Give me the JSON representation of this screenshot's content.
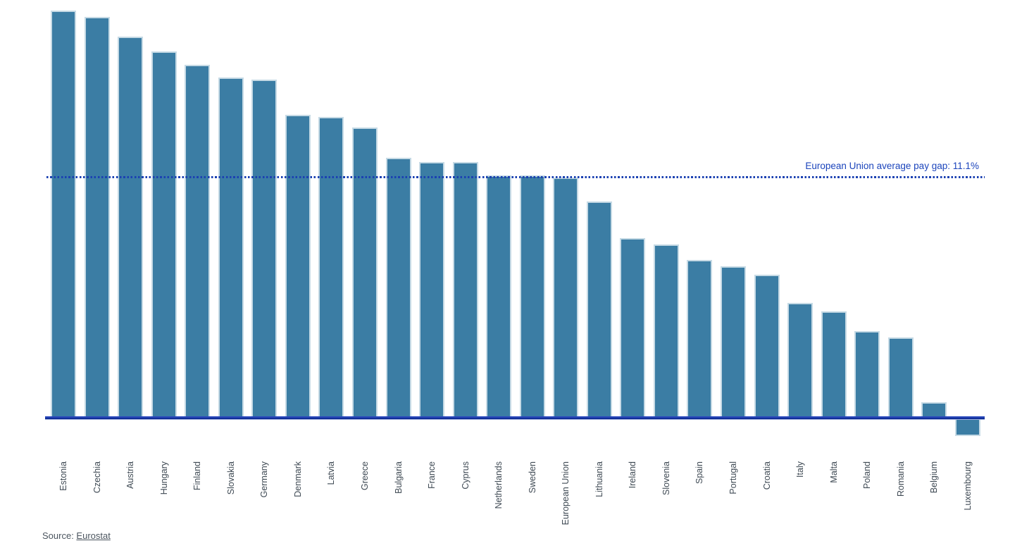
{
  "chart_data": {
    "type": "bar",
    "title": "",
    "xlabel": "",
    "ylabel": "",
    "unit": "%",
    "ylim": [
      -1.5,
      19.5
    ],
    "grid": false,
    "legend": "none",
    "bar_color": "#3b7da4",
    "bar_border_color": "#c6dae5",
    "categories": [
      "Estonia",
      "Czechia",
      "Austria",
      "Hungary",
      "Finland",
      "Slovakia",
      "Germany",
      "Denmark",
      "Latvia",
      "Greece",
      "Bulgaria",
      "France",
      "Cyprus",
      "Netherlands",
      "Sweden",
      "European Union",
      "Lithuania",
      "Ireland",
      "Slovenia",
      "Spain",
      "Portugal",
      "Croatia",
      "Italy",
      "Malta",
      "Poland",
      "Romania",
      "Belgium",
      "Luxembourg"
    ],
    "values": [
      18.8,
      18.5,
      17.6,
      16.9,
      16.3,
      15.7,
      15.6,
      14.0,
      13.9,
      13.4,
      12.0,
      11.8,
      11.8,
      11.2,
      11.2,
      11.1,
      10.0,
      8.3,
      8.0,
      7.3,
      7.0,
      6.6,
      5.3,
      4.9,
      4.0,
      3.7,
      0.7,
      -0.8
    ],
    "reference_line": {
      "value": 11.1,
      "label": "European Union average pay gap: 11.1%",
      "style": "dotted",
      "color": "#1c45bc"
    },
    "baseline_color": "#102d97"
  },
  "annotation": {
    "avg_label": "European Union average pay gap: 11.1%"
  },
  "source": {
    "prefix": "Source: ",
    "link_label": "Eurostat"
  }
}
